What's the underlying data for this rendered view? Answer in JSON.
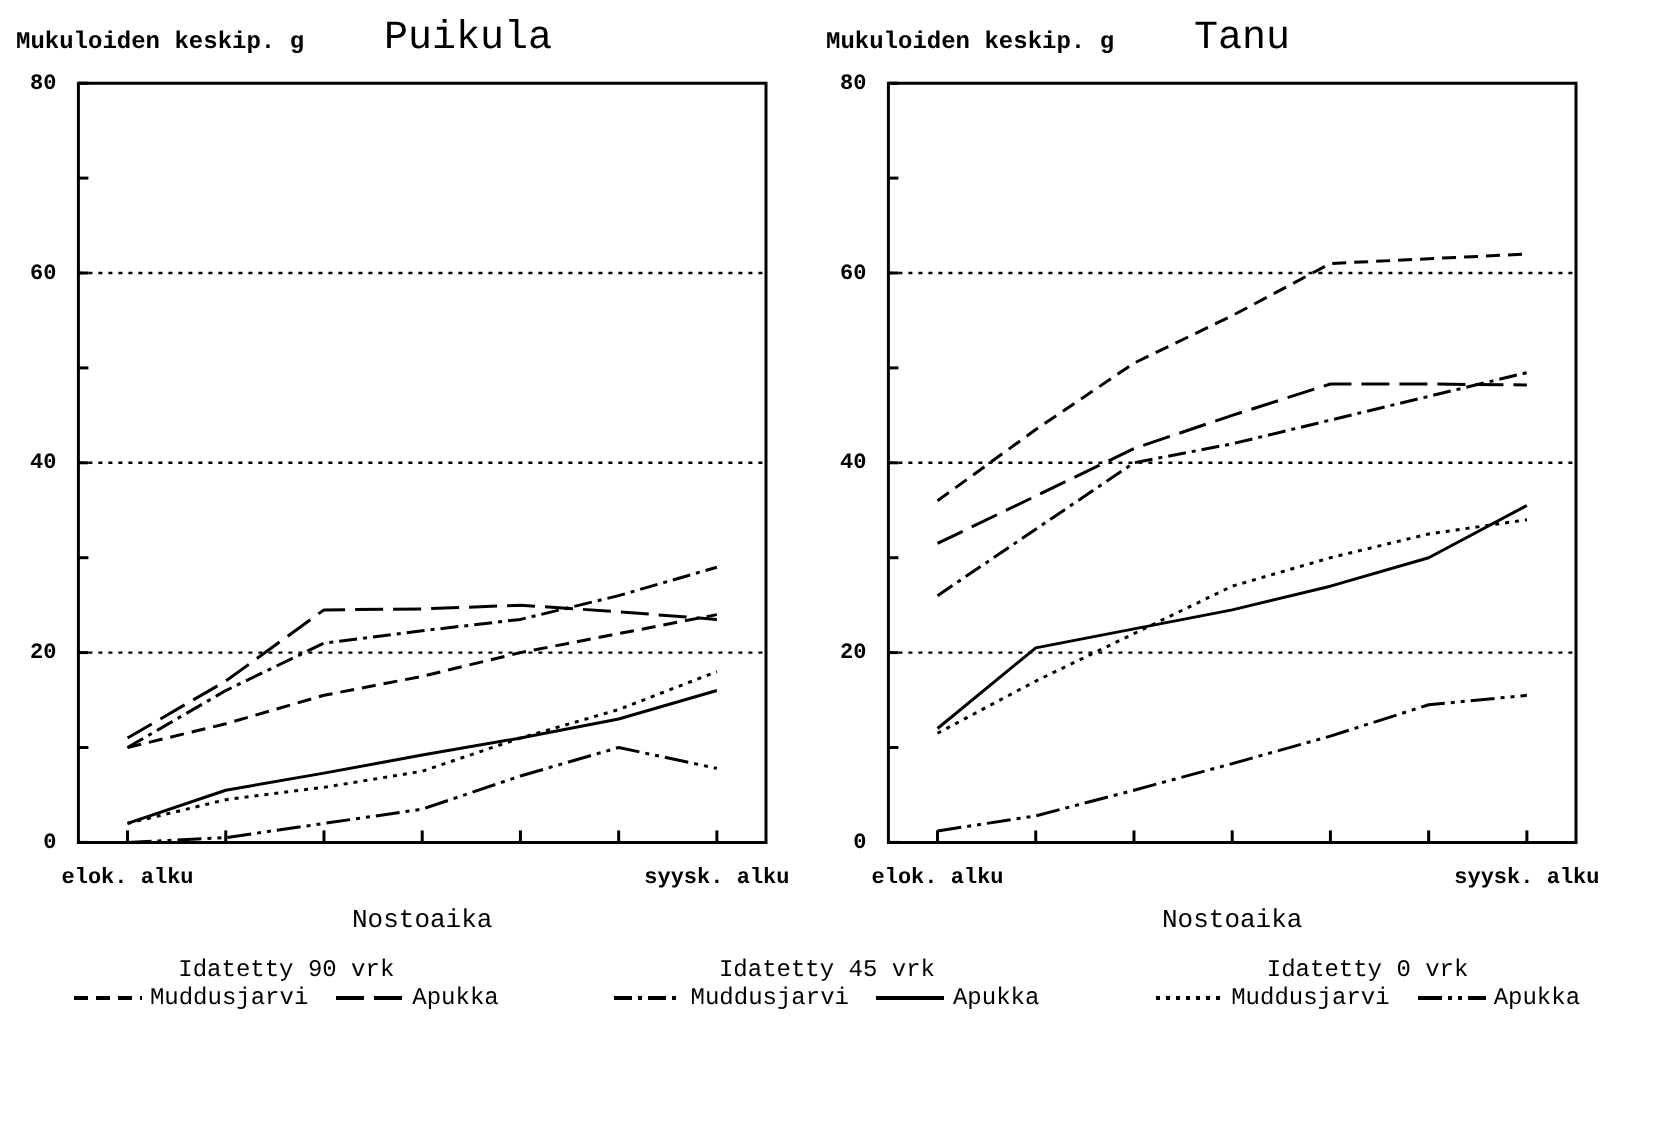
{
  "chart_data": [
    {
      "type": "line",
      "title": "Puikula",
      "ylabel": "Mukuloiden keskip. g",
      "xlabel": "Nostoaika",
      "categories": [
        "elok. alku",
        null,
        null,
        null,
        null,
        null,
        "syysk. alku"
      ],
      "ylim": [
        0,
        80
      ],
      "yticks": [
        0,
        {
          "value": 10,
          "label": null
        },
        20,
        {
          "value": 30,
          "label": null
        },
        40,
        {
          "value": 50,
          "label": null
        },
        60,
        {
          "value": 70,
          "label": null
        },
        80
      ],
      "grid": "y",
      "legend": "bottom",
      "marker": "none",
      "annotations": [
        "Idatetty 90 vrk",
        "Idatetty 45 vrk",
        "Idatetty 0 vrk"
      ],
      "series": [
        {
          "name": "Muddusjarvi",
          "color": "#000000",
          "line_style": "dashed",
          "values": [
            10,
            12.5,
            15.5,
            17.5,
            20,
            22,
            24
          ]
        },
        {
          "name": "Apukka",
          "color": "#000000",
          "line_style": "longdash",
          "values": [
            11,
            17,
            24.5,
            24.6,
            25,
            24.3,
            23.5
          ]
        },
        {
          "name": "Muddusjarvi",
          "color": "#000000",
          "line_style": "dashdot",
          "values": [
            10,
            16,
            21,
            22.3,
            23.5,
            26,
            29
          ]
        },
        {
          "name": "Apukka",
          "color": "#000000",
          "line_style": "solid",
          "values": [
            2,
            5.5,
            7.3,
            9.2,
            11,
            13,
            16
          ]
        },
        {
          "name": "Muddusjarvi",
          "color": "#000000",
          "line_style": "dotted",
          "values": [
            2,
            4.5,
            5.8,
            7.5,
            11,
            14,
            18
          ]
        },
        {
          "name": "Apukka",
          "color": "#000000",
          "line_style": "dashdotdot",
          "values": [
            0,
            0.5,
            2,
            3.5,
            7,
            10,
            7.8
          ]
        }
      ]
    },
    {
      "type": "line",
      "title": "Tanu",
      "ylabel": "Mukuloiden keskip. g",
      "xlabel": "Nostoaika",
      "categories": [
        "elok. alku",
        null,
        null,
        null,
        null,
        null,
        "syysk. alku"
      ],
      "ylim": [
        0,
        80
      ],
      "yticks": [
        0,
        {
          "value": 10,
          "label": null
        },
        20,
        {
          "value": 30,
          "label": null
        },
        40,
        {
          "value": 50,
          "label": null
        },
        60,
        {
          "value": 70,
          "label": null
        },
        80
      ],
      "grid": "y",
      "marker": "none",
      "series": [
        {
          "color": "#000000",
          "line_style": "dashed",
          "values": [
            36,
            43.5,
            50.5,
            55.5,
            61,
            61.5,
            62
          ]
        },
        {
          "color": "#000000",
          "line_style": "longdash",
          "values": [
            31.5,
            36.5,
            41.5,
            45,
            48.3,
            48.3,
            48.2
          ]
        },
        {
          "color": "#000000",
          "line_style": "dashdot",
          "values": [
            26,
            33,
            40,
            42,
            44.5,
            47,
            49.5
          ]
        },
        {
          "color": "#000000",
          "line_style": "solid",
          "values": [
            12,
            20.5,
            22.5,
            24.5,
            27,
            30,
            35.5
          ]
        },
        {
          "color": "#000000",
          "line_style": "dotted",
          "values": [
            11.5,
            17,
            22,
            27,
            30,
            32.5,
            34
          ]
        },
        {
          "color": "#000000",
          "line_style": "dashdotdot",
          "values": [
            1.2,
            2.8,
            5.5,
            8.3,
            11.2,
            14.5,
            15.5
          ]
        }
      ]
    }
  ]
}
